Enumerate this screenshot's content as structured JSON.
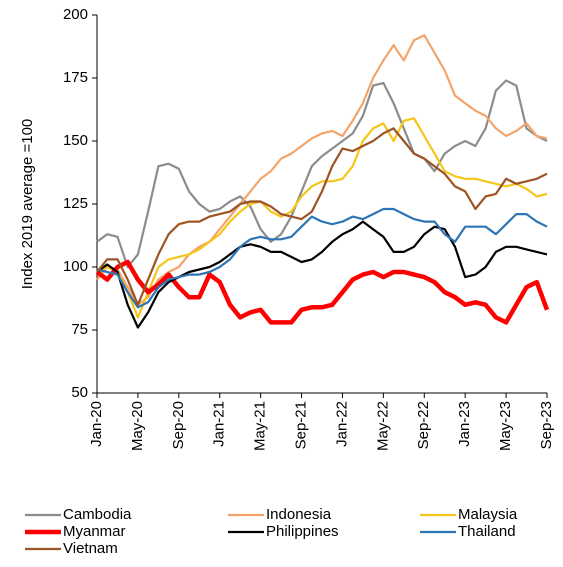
{
  "chart_data": {
    "type": "line",
    "y_axis_label": "Index 2019 average =100",
    "categories": [
      "Jan-20",
      null,
      null,
      null,
      "May-20",
      null,
      null,
      null,
      "Sep-20",
      null,
      null,
      null,
      "Jan-21",
      null,
      null,
      null,
      "May-21",
      null,
      null,
      null,
      "Sep-21",
      null,
      null,
      null,
      "Jan-22",
      null,
      null,
      null,
      "May-22",
      null,
      null,
      null,
      "Sep-22",
      null,
      null,
      null,
      "Jan-23",
      null,
      null,
      null,
      "May-23",
      null,
      null,
      null,
      "Sep-23"
    ],
    "ylim": [
      50,
      200
    ],
    "yticks": [
      50,
      75,
      100,
      125,
      150,
      175,
      200
    ],
    "grid": false,
    "legend": "bottom",
    "series": [
      {
        "name": "Cambodia",
        "color": "#8c8c8c",
        "values": [
          110,
          113,
          112,
          100,
          105,
          122,
          140,
          141,
          139,
          130,
          125,
          122,
          123,
          126,
          128,
          124,
          115,
          110,
          113,
          120,
          130,
          140,
          144,
          147,
          150,
          153,
          160,
          172,
          173,
          165,
          155,
          145,
          143,
          138,
          145,
          148,
          150,
          148,
          155,
          170,
          174,
          172,
          155,
          152,
          150
        ]
      },
      {
        "name": "Indonesia",
        "color": "#f4a46a",
        "values": [
          95,
          100,
          99,
          92,
          85,
          88,
          95,
          98,
          100,
          105,
          108,
          110,
          115,
          120,
          125,
          130,
          135,
          138,
          143,
          145,
          148,
          151,
          153,
          154,
          152,
          158,
          165,
          175,
          182,
          188,
          182,
          190,
          192,
          185,
          178,
          168,
          165,
          162,
          160,
          155,
          152,
          154,
          157,
          152,
          151
        ]
      },
      {
        "name": "Malaysia",
        "color": "#f5c518",
        "values": [
          97,
          100,
          98,
          90,
          80,
          90,
          100,
          103,
          104,
          105,
          107,
          110,
          113,
          118,
          122,
          125,
          126,
          122,
          120,
          122,
          128,
          132,
          134,
          134,
          135,
          140,
          150,
          155,
          157,
          150,
          158,
          159,
          152,
          145,
          138,
          136,
          135,
          135,
          134,
          133,
          132,
          133,
          131,
          128,
          129
        ]
      },
      {
        "name": "Myanmar",
        "color": "#ff0000",
        "values": [
          98,
          95,
          100,
          102,
          95,
          90,
          93,
          97,
          92,
          88,
          88,
          97,
          94,
          85,
          80,
          82,
          83,
          78,
          78,
          78,
          83,
          84,
          84,
          85,
          90,
          95,
          97,
          98,
          96,
          98,
          98,
          97,
          96,
          94,
          90,
          88,
          85,
          86,
          85,
          80,
          78,
          85,
          92,
          94,
          83
        ]
      },
      {
        "name": "Philippines",
        "color": "#000000",
        "values": [
          98,
          101,
          98,
          85,
          76,
          82,
          90,
          94,
          96,
          98,
          99,
          100,
          102,
          105,
          108,
          109,
          108,
          106,
          106,
          104,
          102,
          103,
          106,
          110,
          113,
          115,
          118,
          115,
          112,
          106,
          106,
          108,
          113,
          116,
          115,
          108,
          96,
          97,
          100,
          106,
          108,
          108,
          107,
          106,
          105
        ]
      },
      {
        "name": "Thailand",
        "color": "#2e75b6",
        "values": [
          99,
          98,
          97,
          90,
          84,
          86,
          92,
          95,
          96,
          97,
          97,
          98,
          100,
          103,
          108,
          111,
          112,
          111,
          111,
          112,
          116,
          120,
          118,
          117,
          118,
          120,
          119,
          121,
          123,
          123,
          121,
          119,
          118,
          118,
          113,
          110,
          116,
          116,
          116,
          113,
          117,
          121,
          121,
          118,
          116
        ]
      },
      {
        "name": "Vietnam",
        "color": "#9c5424",
        "values": [
          98,
          103,
          103,
          95,
          85,
          95,
          105,
          113,
          117,
          118,
          118,
          120,
          121,
          122,
          125,
          126,
          126,
          124,
          121,
          120,
          119,
          122,
          130,
          140,
          147,
          146,
          148,
          150,
          153,
          155,
          150,
          145,
          143,
          140,
          137,
          132,
          130,
          123,
          128,
          129,
          135,
          133,
          134,
          135,
          137
        ]
      }
    ]
  }
}
